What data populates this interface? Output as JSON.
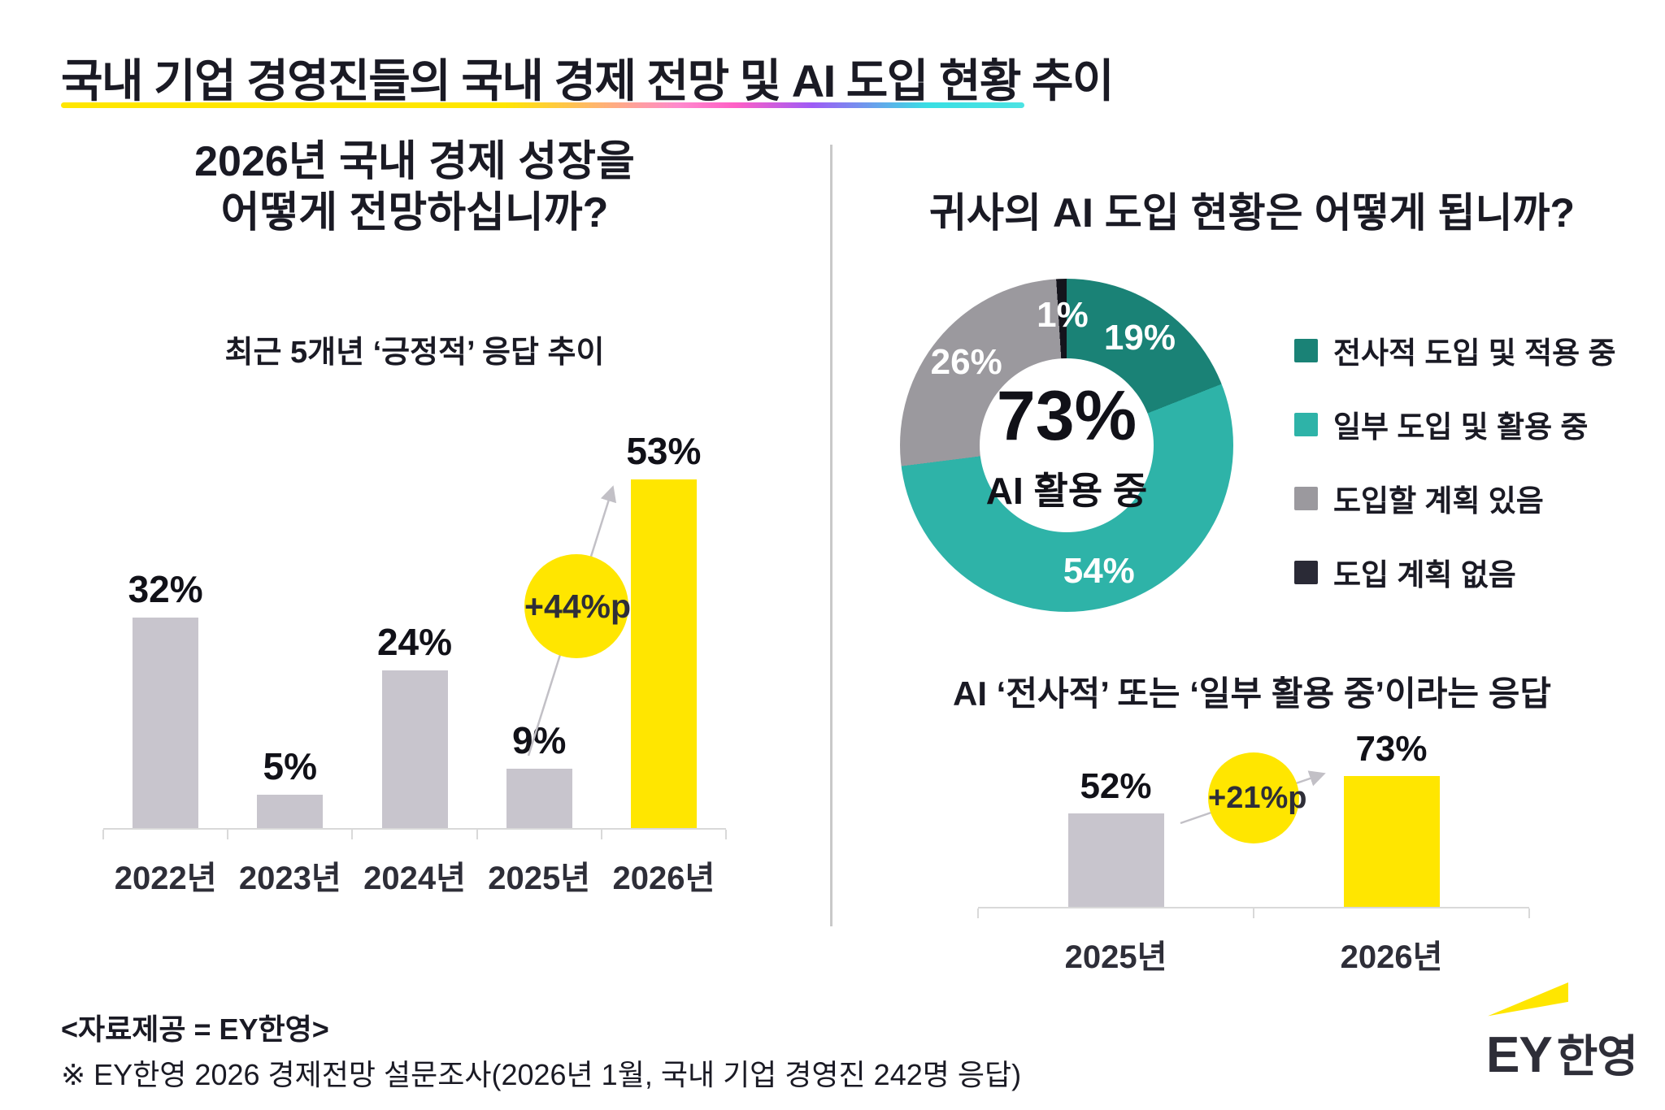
{
  "header": {
    "title": "국내 기업 경영진들의 국내 경제 전망 및 AI 도입 현황 추이"
  },
  "left_panel": {
    "question_line1": "2026년 국내 경제 성장을",
    "question_line2": "어떻게 전망하십니까?",
    "subtitle": "최근 5개년 ‘긍정적’ 응답 추이",
    "annotation": "+44%p"
  },
  "right_panel": {
    "donut_title": "귀사의 AI 도입 현황은 어떻게 됩니까?",
    "donut_center_value": "73%",
    "donut_center_label": "AI 활용 중",
    "legend": [
      {
        "label": "전사적 도입 및 적용 중",
        "color": "#1A8276"
      },
      {
        "label": "일부 도입 및 활용 중",
        "color": "#2EB3A8"
      },
      {
        "label": "도입할 계획 있음",
        "color": "#9B999E"
      },
      {
        "label": "도입 계획 없음",
        "color": "#2A2A36"
      }
    ],
    "bar_title": "AI ‘전사적’ 또는 ‘일부 활용 중’이라는 응답",
    "annotation": "+21%p"
  },
  "source": {
    "line1": "<자료제공 = EY한영>",
    "line2": "※ EY한영 2026 경제전망 설문조사(2026년 1월, 국내 기업 경영진 242명 응답)"
  },
  "logo": {
    "ey": "EY",
    "suffix": "한영"
  },
  "colors": {
    "accent_yellow": "#FFE600",
    "bar_gray": "#C8C5CD",
    "teal_dark": "#1A8276",
    "teal": "#2EB3A8",
    "donut_gray": "#9B999E",
    "donut_black": "#14141C",
    "axis_gray": "#D9D9D9",
    "arrow_gray": "#C2C0C6",
    "text_dark": "#1A1A24"
  },
  "chart_data": [
    {
      "id": "economy-outlook-positive-trend",
      "type": "bar",
      "title": "2026년 국내 경제 성장을 어떻게 전망하십니까?",
      "subtitle": "최근 5개년 ‘긍정적’ 응답 추이",
      "categories": [
        "2022년",
        "2023년",
        "2024년",
        "2025년",
        "2026년"
      ],
      "values": [
        32,
        5,
        24,
        9,
        53
      ],
      "unit": "%",
      "bar_colors": [
        "#C8C5CD",
        "#C8C5CD",
        "#C8C5CD",
        "#C8C5CD",
        "#FFE600"
      ],
      "highlight_category": "2026년",
      "annotation": "+44%p",
      "ylim": [
        0,
        57
      ],
      "grid": false,
      "legend_position": "none"
    },
    {
      "id": "ai-adoption-status-donut",
      "type": "pie",
      "title": "귀사의 AI 도입 현황은 어떻게 됩니까?",
      "segments": [
        {
          "label": "전사적 도입 및 적용 중",
          "value": 19,
          "color": "#1A8276"
        },
        {
          "label": "일부 도입 및 활용 중",
          "value": 54,
          "color": "#2EB3A8"
        },
        {
          "label": "도입할 계획 있음",
          "value": 26,
          "color": "#9B999E"
        },
        {
          "label": "도입 계획 없음",
          "value": 1,
          "color": "#14141C"
        }
      ],
      "unit": "%",
      "center_value": "73%",
      "center_label": "AI 활용 중",
      "legend_position": "right"
    },
    {
      "id": "ai-usage-response-trend",
      "type": "bar",
      "title": "AI ‘전사적’ 또는 ‘일부 활용 중’이라는 응답",
      "categories": [
        "2025년",
        "2026년"
      ],
      "values": [
        52,
        73
      ],
      "unit": "%",
      "bar_colors": [
        "#C8C5CD",
        "#FFE600"
      ],
      "highlight_category": "2026년",
      "annotation": "+21%p",
      "ylim": [
        0,
        85
      ],
      "grid": false,
      "legend_position": "none"
    }
  ]
}
